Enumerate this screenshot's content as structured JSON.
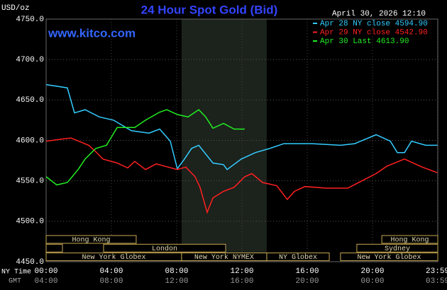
{
  "chart_data": {
    "type": "line",
    "title": "24 Hour Spot Gold (Bid)",
    "website": "www.kitco.com",
    "timestamp": "April 30, 2026 12:10",
    "y_label": "USD/oz",
    "x_row_labels": [
      "NY Time",
      "GMT"
    ],
    "background": "#000000",
    "grid": true,
    "legend": "top-right",
    "shaded_range": [
      8.3,
      13.52
    ],
    "xlim": [
      0,
      24
    ],
    "xticks": [
      {
        "value": 0,
        "label": "00:00"
      },
      {
        "value": 4,
        "label": "04:00"
      },
      {
        "value": 8,
        "label": "08:00"
      },
      {
        "value": 12,
        "label": "12:00"
      },
      {
        "value": 16,
        "label": "16:00"
      },
      {
        "value": 20,
        "label": "20:00"
      },
      {
        "value": 23.98,
        "label": "23:59"
      }
    ],
    "x2ticks": [
      {
        "value": 0,
        "label": "04:00"
      },
      {
        "value": 4,
        "label": "08:00"
      },
      {
        "value": 8,
        "label": "12:00"
      },
      {
        "value": 12,
        "label": "16:00"
      },
      {
        "value": 16,
        "label": "20:00"
      },
      {
        "value": 20,
        "label": "00:00"
      },
      {
        "value": 23.98,
        "label": "03:59"
      }
    ],
    "ylim": [
      4450,
      4750
    ],
    "yticks": [
      {
        "value": 4450,
        "label": "4450.0"
      },
      {
        "value": 4500,
        "label": "4500.0"
      },
      {
        "value": 4550,
        "label": "4550.0"
      },
      {
        "value": 4600,
        "label": "4600.0"
      },
      {
        "value": 4650,
        "label": "4650.0"
      },
      {
        "value": 4700,
        "label": "4700.0"
      },
      {
        "value": 4750,
        "label": "4750.0"
      }
    ],
    "sessions": [
      {
        "name": "Hong Kong",
        "row": 0,
        "start": 0,
        "end": 5.52
      },
      {
        "name": "Hong Kong",
        "row": 0,
        "start": 20.57,
        "end": 24
      },
      {
        "name": null,
        "row": 1,
        "start": 0,
        "end": 1
      },
      {
        "name": "London",
        "row": 1,
        "start": 3.52,
        "end": 11
      },
      {
        "name": "Sydney",
        "row": 1,
        "start": 19.04,
        "end": 24
      },
      {
        "name": "New York Globex",
        "row": 2,
        "start": 0,
        "end": 8.3
      },
      {
        "name": "New York NYMEX",
        "row": 2,
        "start": 8.3,
        "end": 13.52
      },
      {
        "name": "NY Globex",
        "row": 2,
        "start": 13.52,
        "end": 17.35
      },
      {
        "name": "New York Globex",
        "row": 2,
        "start": 18.04,
        "end": 24
      }
    ],
    "series": [
      {
        "name": "Apr 28 NY close 4594.90",
        "color": "#33ccff",
        "x": [
          0,
          1.3,
          1.74,
          2.39,
          3.26,
          4.13,
          5.22,
          6.3,
          6.96,
          7.61,
          8.04,
          8.48,
          8.91,
          9.35,
          10.22,
          10.87,
          11.09,
          11.96,
          12.83,
          13.7,
          14.57,
          16.3,
          18.04,
          18.91,
          20.22,
          21.09,
          21.52,
          21.96,
          22.39,
          23.26,
          23.98
        ],
        "values": [
          4669,
          4665,
          4634,
          4638,
          4629,
          4625,
          4612,
          4609,
          4614,
          4599,
          4565,
          4577,
          4590,
          4594,
          4572,
          4570,
          4564,
          4577,
          4585,
          4590,
          4596,
          4596,
          4594,
          4596,
          4607,
          4599,
          4585,
          4585,
          4599,
          4594,
          4594
        ]
      },
      {
        "name": "Apr 29 NY close 4542.90",
        "color": "#ff2020",
        "x": [
          0,
          1.09,
          1.52,
          2.61,
          3.04,
          3.48,
          4.35,
          5,
          5.43,
          6.09,
          6.74,
          8.04,
          8.56,
          9.13,
          9.43,
          9.87,
          10.22,
          10.87,
          11.52,
          12.17,
          12.61,
          13.26,
          14.13,
          14.78,
          15.22,
          15.87,
          17.17,
          18.48,
          19.35,
          20.22,
          20.87,
          21.96,
          22.39,
          23.04,
          23.98
        ],
        "values": [
          4599,
          4602,
          4603,
          4594,
          4586,
          4577,
          4572,
          4566,
          4574,
          4564,
          4571,
          4564,
          4567,
          4555,
          4542,
          4511,
          4529,
          4537,
          4542,
          4555,
          4559,
          4548,
          4544,
          4527,
          4537,
          4543,
          4541,
          4541,
          4550,
          4559,
          4568,
          4577,
          4573,
          4567,
          4560
        ]
      },
      {
        "name": "Apr 30 Last 4613.90",
        "color": "#22ee22",
        "x": [
          0,
          0.65,
          1.3,
          1.96,
          2.39,
          3.04,
          3.7,
          4.35,
          5.43,
          6.09,
          6.96,
          7.39,
          8.04,
          8.7,
          9.35,
          9.78,
          10.22,
          10.87,
          11.52,
          12.17
        ],
        "values": [
          4555,
          4545,
          4548,
          4564,
          4577,
          4590,
          4594,
          4616,
          4616,
          4625,
          4635,
          4638,
          4632,
          4629,
          4638,
          4629,
          4615,
          4621,
          4614,
          4614
        ]
      }
    ]
  }
}
